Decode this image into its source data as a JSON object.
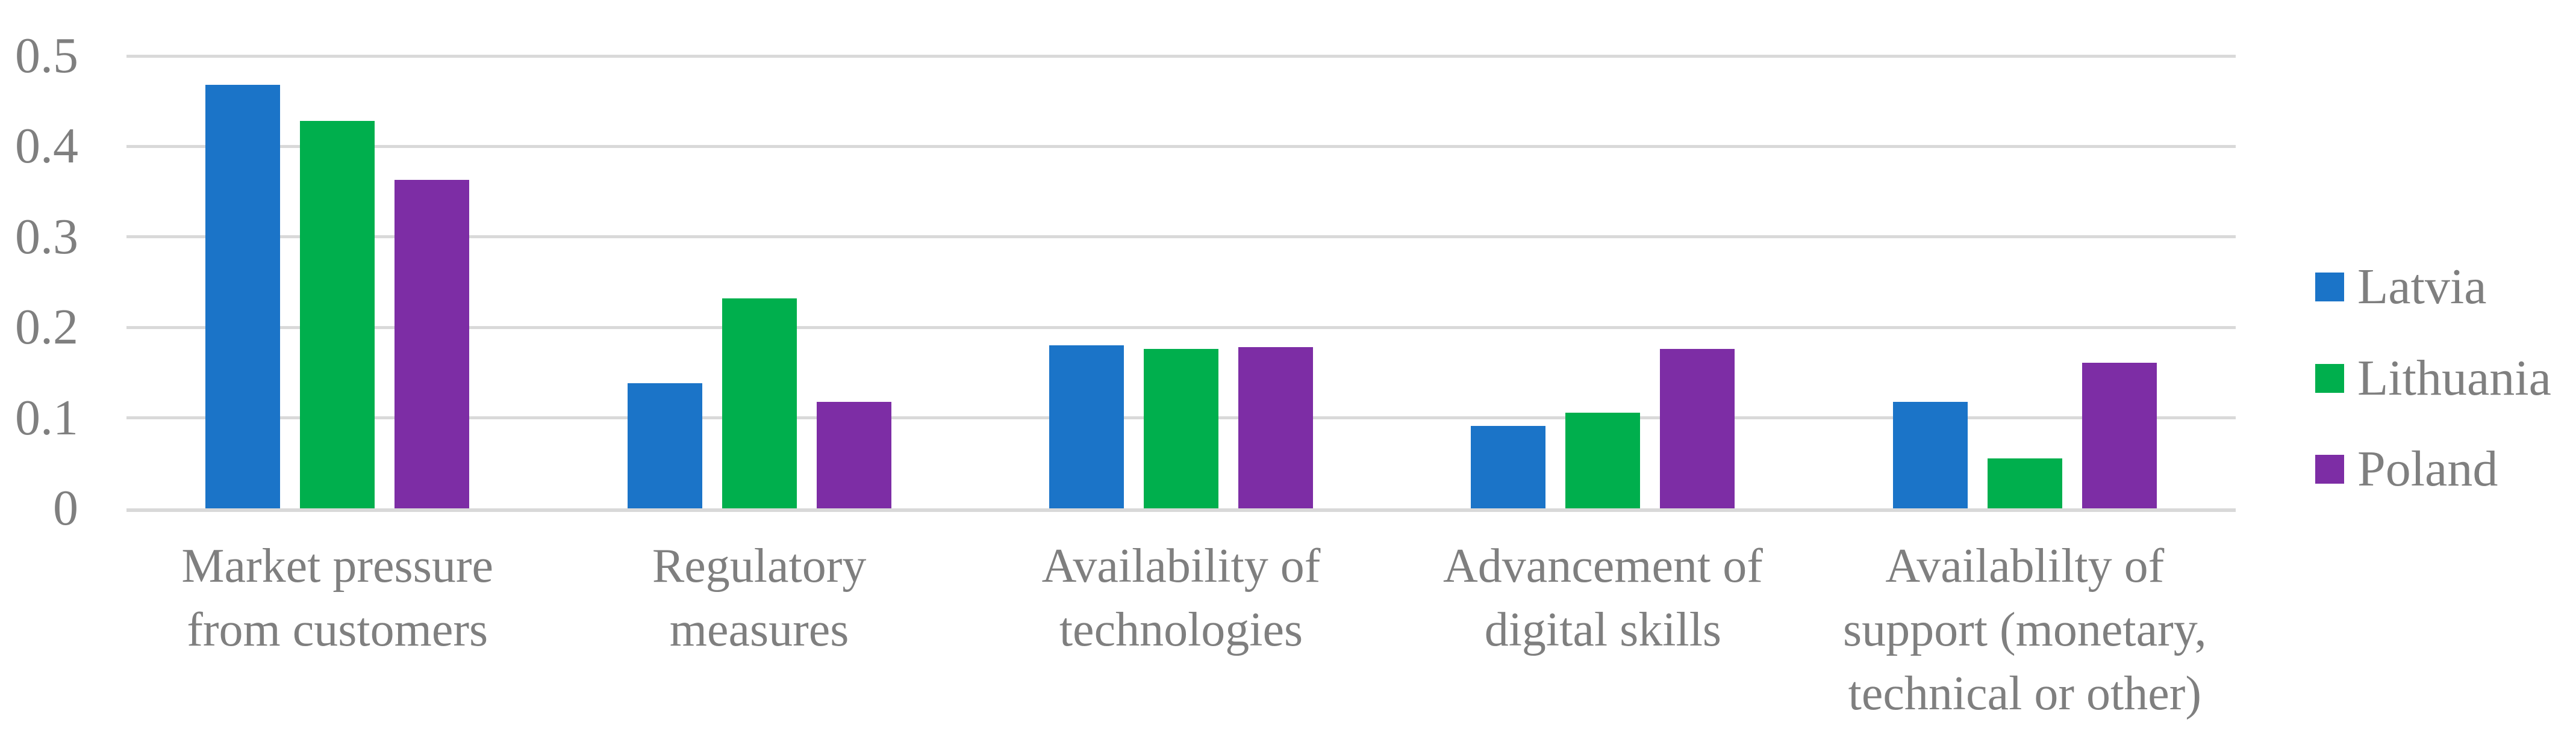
{
  "figure": {
    "background": "#FFFFFF",
    "axis_text_color": "#7F7F7F",
    "gridline_color": "#D9D9D9"
  },
  "chart_data": {
    "type": "bar",
    "title": "",
    "xlabel": "",
    "ylabel": "",
    "categories": [
      "Market pressure\nfrom customers",
      "Regulatory\nmeasures",
      "Availability of\ntechnologies",
      "Advancement of\ndigital skills",
      "Availablilty of\nsupport (monetary,\ntechnical or other)"
    ],
    "series": [
      {
        "name": "Latvia",
        "color": "#1B74C8",
        "values": [
          0.468,
          0.138,
          0.18,
          0.091,
          0.118
        ]
      },
      {
        "name": "Lithuania",
        "color": "#00AF4D",
        "values": [
          0.428,
          0.232,
          0.176,
          0.106,
          0.055
        ]
      },
      {
        "name": "Poland",
        "color": "#7D2DA5",
        "values": [
          0.363,
          0.118,
          0.178,
          0.176,
          0.161
        ]
      }
    ],
    "ylim": [
      0,
      0.5
    ],
    "yticks": [
      0,
      0.1,
      0.2,
      0.3,
      0.4,
      0.5
    ],
    "ytick_labels": [
      "0",
      "0.1",
      "0.2",
      "0.3",
      "0.4",
      "0.5"
    ],
    "grid": true,
    "legend_position": "right"
  }
}
